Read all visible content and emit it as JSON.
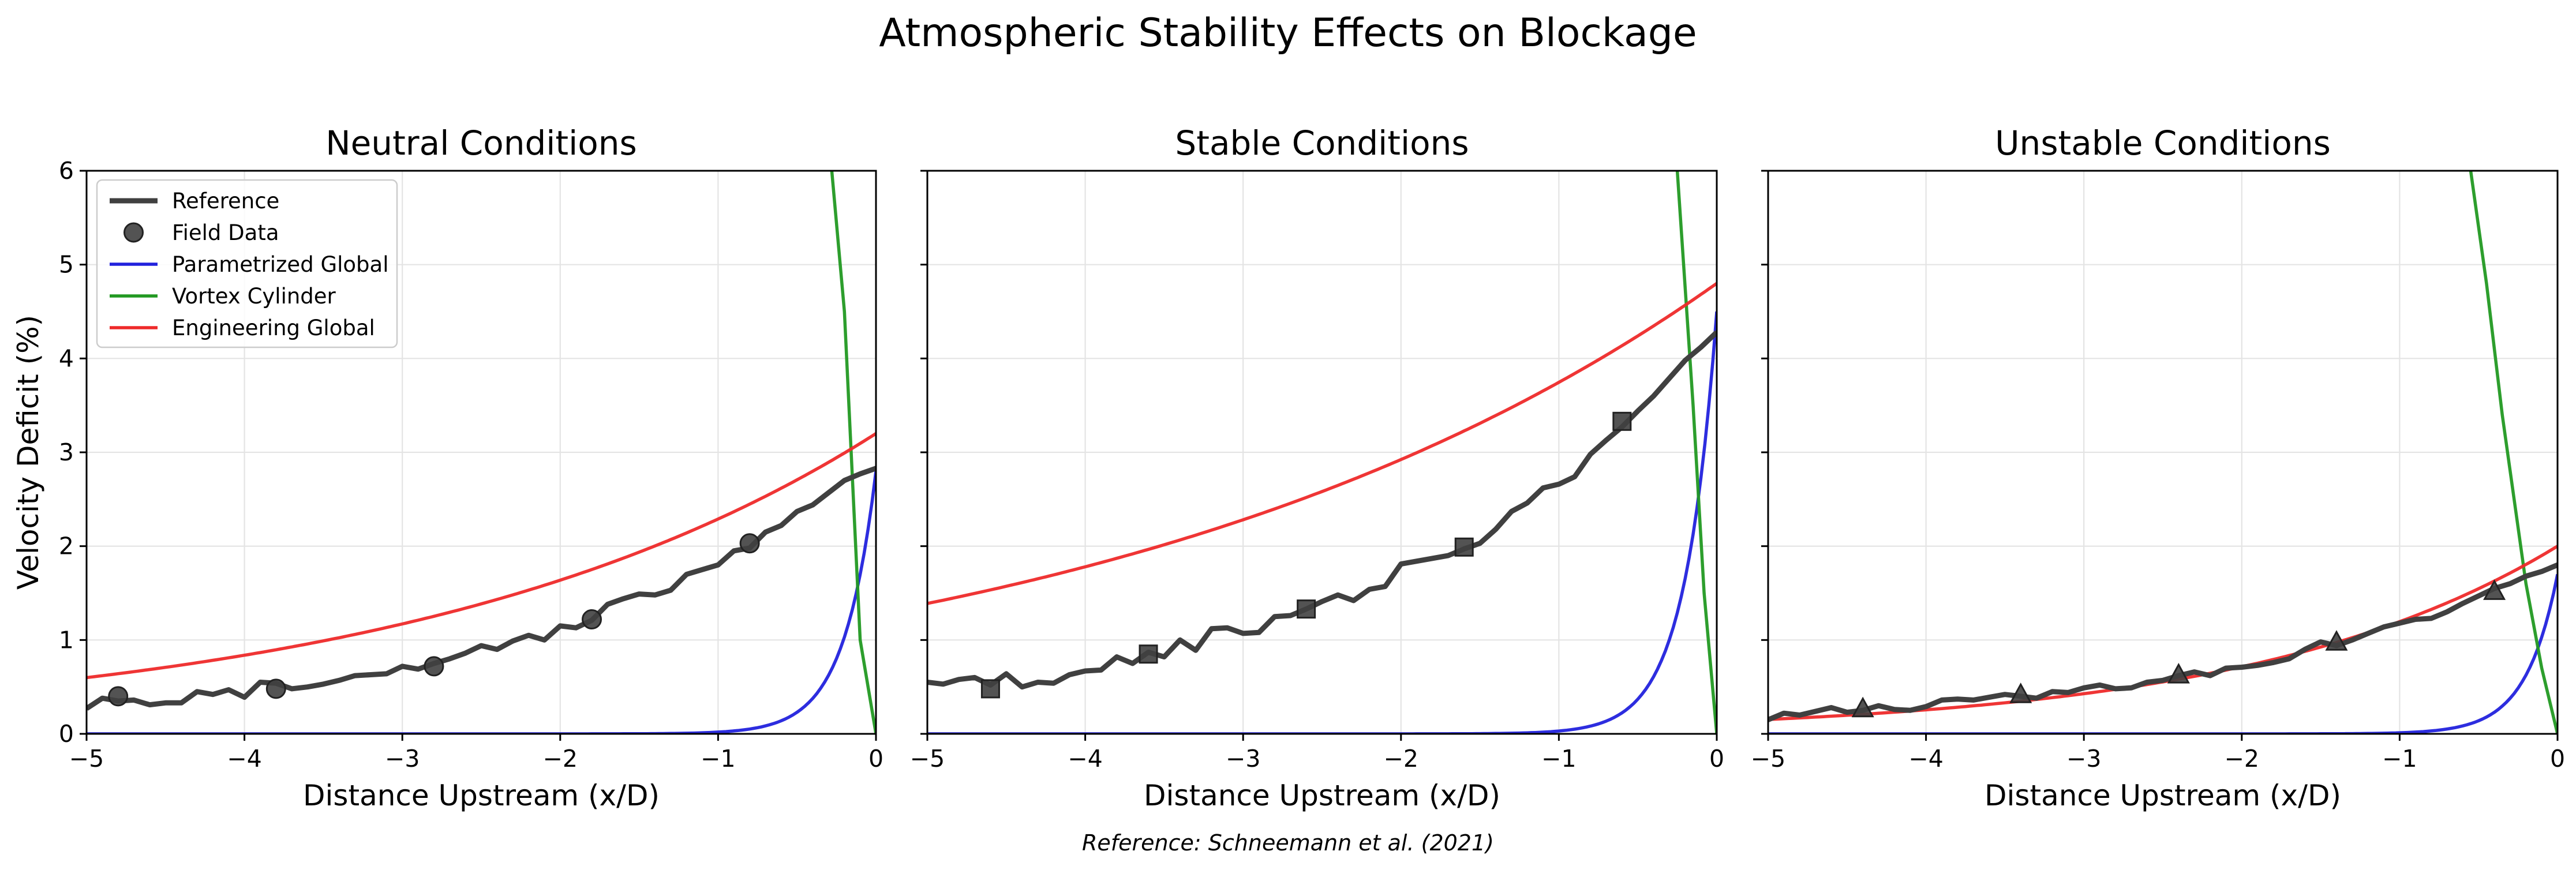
{
  "figure": {
    "title": "Atmospheric Stability Effects on Blockage",
    "footnote": "Reference: Schneemann et al. (2021)"
  },
  "colors": {
    "reference": "#404040",
    "field_data": "#404040",
    "parametrized_global": "#2222dd",
    "vortex_cylinder": "#229922",
    "engineering_global": "#ee2a2a",
    "grid": "#e4e4e4"
  },
  "legend": {
    "placement": "upper-left of first panel",
    "items": [
      {
        "label": "Reference",
        "marker": "line",
        "color": "#404040"
      },
      {
        "label": "Field Data",
        "marker": "circle",
        "color": "#404040"
      },
      {
        "label": "Parametrized Global",
        "marker": "line",
        "color": "#2222dd"
      },
      {
        "label": "Vortex Cylinder",
        "marker": "line",
        "color": "#229922"
      },
      {
        "label": "Engineering Global",
        "marker": "line",
        "color": "#ee2a2a"
      }
    ]
  },
  "chart_data": [
    {
      "type": "line",
      "title": "Neutral Conditions",
      "xlabel": "Distance Upstream (x/D)",
      "ylabel": "Velocity Deficit (%)",
      "xlim": [
        -5,
        0
      ],
      "ylim": [
        0,
        6
      ],
      "xticks": [
        -5,
        -4,
        -3,
        -2,
        -1,
        0
      ],
      "yticks": [
        0,
        1,
        2,
        3,
        4,
        5,
        6
      ],
      "grid": true,
      "field_marker": "circle",
      "series": [
        {
          "name": "Reference",
          "kind": "line",
          "color": "#404040",
          "x": [
            -5.0,
            -4.9,
            -4.8,
            -4.7,
            -4.6,
            -4.5,
            -4.4,
            -4.3,
            -4.2,
            -4.1,
            -4.0,
            -3.9,
            -3.8,
            -3.7,
            -3.6,
            -3.5,
            -3.4,
            -3.3,
            -3.2,
            -3.1,
            -3.0,
            -2.9,
            -2.8,
            -2.7,
            -2.6,
            -2.5,
            -2.4,
            -2.3,
            -2.2,
            -2.1,
            -2.0,
            -1.9,
            -1.8,
            -1.7,
            -1.6,
            -1.5,
            -1.4,
            -1.3,
            -1.2,
            -1.1,
            -1.0,
            -0.9,
            -0.8,
            -0.7,
            -0.6,
            -0.5,
            -0.4,
            -0.3,
            -0.2,
            -0.1,
            0.0
          ],
          "y": [
            0.27,
            0.38,
            0.35,
            0.36,
            0.31,
            0.33,
            0.33,
            0.45,
            0.42,
            0.47,
            0.39,
            0.55,
            0.54,
            0.48,
            0.5,
            0.53,
            0.57,
            0.62,
            0.63,
            0.64,
            0.72,
            0.69,
            0.75,
            0.8,
            0.86,
            0.94,
            0.9,
            0.99,
            1.05,
            1.0,
            1.15,
            1.13,
            1.21,
            1.38,
            1.44,
            1.49,
            1.48,
            1.53,
            1.7,
            1.75,
            1.8,
            1.95,
            1.98,
            2.15,
            2.22,
            2.37,
            2.44,
            2.57,
            2.7,
            2.77,
            2.83
          ]
        },
        {
          "name": "Field Data",
          "kind": "scatter",
          "color": "#404040",
          "x": [
            -4.8,
            -3.8,
            -2.8,
            -1.8,
            -0.8
          ],
          "y": [
            0.4,
            0.48,
            0.72,
            1.22,
            2.03
          ]
        },
        {
          "name": "Parametrized Global",
          "kind": "line",
          "color": "#2222dd",
          "model": "exp",
          "a": 2.8,
          "b": 5.0
        },
        {
          "name": "Vortex Cylinder",
          "kind": "line",
          "color": "#229922",
          "x": [
            -0.28,
            -0.2,
            -0.1,
            0.0
          ],
          "y": [
            6.0,
            4.5,
            1.0,
            0.0
          ]
        },
        {
          "name": "Engineering Global",
          "kind": "line",
          "color": "#ee2a2a",
          "model": "exp",
          "a": 3.2,
          "b": 0.335
        }
      ]
    },
    {
      "type": "line",
      "title": "Stable Conditions",
      "xlabel": "Distance Upstream (x/D)",
      "ylabel": "",
      "xlim": [
        -5,
        0
      ],
      "ylim": [
        0,
        6
      ],
      "xticks": [
        -5,
        -4,
        -3,
        -2,
        -1,
        0
      ],
      "yticks": [
        0,
        1,
        2,
        3,
        4,
        5,
        6
      ],
      "grid": true,
      "field_marker": "square",
      "series": [
        {
          "name": "Reference",
          "kind": "line",
          "color": "#404040",
          "x": [
            -5.0,
            -4.9,
            -4.8,
            -4.7,
            -4.6,
            -4.5,
            -4.4,
            -4.3,
            -4.2,
            -4.1,
            -4.0,
            -3.9,
            -3.8,
            -3.7,
            -3.6,
            -3.5,
            -3.4,
            -3.3,
            -3.2,
            -3.1,
            -3.0,
            -2.9,
            -2.8,
            -2.7,
            -2.6,
            -2.5,
            -2.4,
            -2.3,
            -2.2,
            -2.1,
            -2.0,
            -1.9,
            -1.8,
            -1.7,
            -1.6,
            -1.5,
            -1.4,
            -1.3,
            -1.2,
            -1.1,
            -1.0,
            -0.9,
            -0.8,
            -0.7,
            -0.6,
            -0.5,
            -0.4,
            -0.3,
            -0.2,
            -0.1,
            0.0
          ],
          "y": [
            0.55,
            0.53,
            0.58,
            0.6,
            0.52,
            0.64,
            0.5,
            0.55,
            0.54,
            0.63,
            0.67,
            0.68,
            0.82,
            0.75,
            0.87,
            0.82,
            1.0,
            0.89,
            1.12,
            1.13,
            1.07,
            1.08,
            1.25,
            1.26,
            1.33,
            1.41,
            1.48,
            1.42,
            1.54,
            1.57,
            1.81,
            1.84,
            1.87,
            1.9,
            1.97,
            2.03,
            2.18,
            2.37,
            2.46,
            2.62,
            2.66,
            2.74,
            2.98,
            3.13,
            3.27,
            3.44,
            3.6,
            3.79,
            3.98,
            4.12,
            4.28
          ]
        },
        {
          "name": "Field Data",
          "kind": "scatter",
          "color": "#404040",
          "x": [
            -4.6,
            -3.6,
            -2.6,
            -1.6,
            -0.6
          ],
          "y": [
            0.48,
            0.85,
            1.33,
            1.99,
            3.33
          ]
        },
        {
          "name": "Parametrized Global",
          "kind": "line",
          "color": "#2222dd",
          "model": "exp",
          "a": 4.5,
          "b": 5.0
        },
        {
          "name": "Vortex Cylinder",
          "kind": "line",
          "color": "#229922",
          "x": [
            -0.25,
            -0.15,
            -0.08,
            0.0
          ],
          "y": [
            6.0,
            3.5,
            1.5,
            0.0
          ]
        },
        {
          "name": "Engineering Global",
          "kind": "line",
          "color": "#ee2a2a",
          "model": "exp",
          "a": 4.8,
          "b": 0.248
        }
      ]
    },
    {
      "type": "line",
      "title": "Unstable Conditions",
      "xlabel": "Distance Upstream (x/D)",
      "ylabel": "",
      "xlim": [
        -5,
        0
      ],
      "ylim": [
        0,
        6
      ],
      "xticks": [
        -5,
        -4,
        -3,
        -2,
        -1,
        0
      ],
      "yticks": [
        0,
        1,
        2,
        3,
        4,
        5,
        6
      ],
      "grid": true,
      "field_marker": "triangle",
      "series": [
        {
          "name": "Reference",
          "kind": "line",
          "color": "#404040",
          "x": [
            -5.0,
            -4.9,
            -4.8,
            -4.7,
            -4.6,
            -4.5,
            -4.4,
            -4.3,
            -4.2,
            -4.1,
            -4.0,
            -3.9,
            -3.8,
            -3.7,
            -3.6,
            -3.5,
            -3.4,
            -3.3,
            -3.2,
            -3.1,
            -3.0,
            -2.9,
            -2.8,
            -2.7,
            -2.6,
            -2.5,
            -2.4,
            -2.3,
            -2.2,
            -2.1,
            -2.0,
            -1.9,
            -1.8,
            -1.7,
            -1.6,
            -1.5,
            -1.4,
            -1.3,
            -1.2,
            -1.1,
            -1.0,
            -0.9,
            -0.8,
            -0.7,
            -0.6,
            -0.5,
            -0.4,
            -0.3,
            -0.2,
            -0.1,
            0.0
          ],
          "y": [
            0.15,
            0.22,
            0.2,
            0.24,
            0.28,
            0.23,
            0.25,
            0.3,
            0.26,
            0.25,
            0.29,
            0.36,
            0.37,
            0.36,
            0.39,
            0.42,
            0.4,
            0.38,
            0.45,
            0.44,
            0.49,
            0.52,
            0.48,
            0.49,
            0.55,
            0.57,
            0.62,
            0.66,
            0.62,
            0.7,
            0.71,
            0.73,
            0.76,
            0.8,
            0.9,
            0.98,
            0.94,
            1.0,
            1.07,
            1.14,
            1.18,
            1.22,
            1.23,
            1.3,
            1.39,
            1.47,
            1.55,
            1.6,
            1.68,
            1.73,
            1.8
          ]
        },
        {
          "name": "Field Data",
          "kind": "scatter",
          "color": "#404040",
          "x": [
            -4.4,
            -3.4,
            -2.4,
            -1.4,
            -0.4
          ],
          "y": [
            0.26,
            0.41,
            0.62,
            0.97,
            1.51
          ]
        },
        {
          "name": "Parametrized Global",
          "kind": "line",
          "color": "#2222dd",
          "model": "exp",
          "a": 1.7,
          "b": 5.0
        },
        {
          "name": "Vortex Cylinder",
          "kind": "line",
          "color": "#229922",
          "x": [
            -0.55,
            -0.45,
            -0.35,
            -0.2,
            -0.1,
            0.0
          ],
          "y": [
            6.0,
            4.8,
            3.4,
            1.6,
            0.7,
            0.0
          ]
        },
        {
          "name": "Engineering Global",
          "kind": "line",
          "color": "#ee2a2a",
          "model": "exp",
          "a": 2.0,
          "b": 0.514
        }
      ]
    }
  ]
}
